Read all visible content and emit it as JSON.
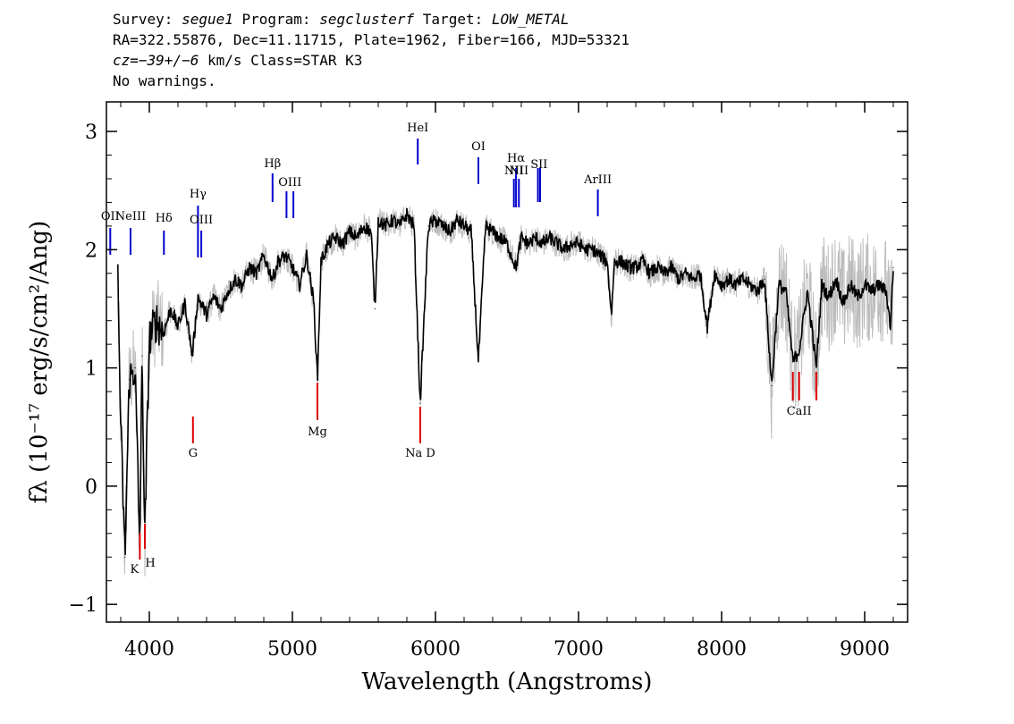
{
  "header": {
    "line1": {
      "survey_label": "Survey: ",
      "survey": "segue1",
      "program_label": " Program: ",
      "program": "segclusterf",
      "target_label": " Target: ",
      "target": "LOW_METAL"
    },
    "line2": "RA=322.55876, Dec=11.11715, Plate=1962, Fiber=166, MJD=53321",
    "line3": {
      "cz_label": "cz",
      "cz_value": "=−39+/−6",
      "rest": " km/s Class=STAR K3"
    },
    "line4": "No warnings."
  },
  "chart_data": {
    "type": "line",
    "xlabel": "Wavelength (Angstroms)",
    "ylabel": "fλ (10⁻¹⁷ erg/s/cm²/Ang)",
    "xlim": [
      3700,
      9300
    ],
    "ylim": [
      -1.15,
      3.25
    ],
    "xticks": [
      4000,
      5000,
      6000,
      7000,
      8000,
      9000
    ],
    "yticks": [
      -1,
      0,
      1,
      2,
      3
    ],
    "series": [
      {
        "color": "#000000",
        "x": [
          3780,
          3800,
          3830,
          3860,
          3900,
          3933,
          3950,
          3968,
          4000,
          4050,
          4100,
          4150,
          4200,
          4250,
          4300,
          4340,
          4400,
          4450,
          4500,
          4550,
          4600,
          4650,
          4700,
          4750,
          4800,
          4861,
          4900,
          4950,
          5000,
          5050,
          5100,
          5150,
          5175,
          5200,
          5250,
          5300,
          5350,
          5400,
          5450,
          5500,
          5550,
          5577,
          5600,
          5650,
          5700,
          5750,
          5800,
          5850,
          5893,
          5950,
          6000,
          6050,
          6100,
          6150,
          6200,
          6250,
          6300,
          6350,
          6400,
          6450,
          6500,
          6563,
          6600,
          6650,
          6700,
          6750,
          6800,
          6850,
          6900,
          6950,
          7000,
          7050,
          7100,
          7150,
          7200,
          7230,
          7250,
          7300,
          7350,
          7400,
          7450,
          7500,
          7550,
          7600,
          7650,
          7700,
          7750,
          7800,
          7850,
          7900,
          7950,
          8000,
          8050,
          8100,
          8150,
          8200,
          8250,
          8300,
          8350,
          8400,
          8450,
          8498,
          8542,
          8600,
          8662,
          8700,
          8750,
          8800,
          8850,
          8900,
          8950,
          9000,
          9050,
          9100,
          9150,
          9180,
          9200
        ],
        "y": [
          1.75,
          0.5,
          -0.6,
          0.9,
          1.0,
          -0.5,
          1.1,
          -0.45,
          1.25,
          1.4,
          1.3,
          1.5,
          1.35,
          1.55,
          1.1,
          1.6,
          1.45,
          1.6,
          1.5,
          1.65,
          1.75,
          1.7,
          1.85,
          1.8,
          1.95,
          1.75,
          1.9,
          1.95,
          1.85,
          1.7,
          1.95,
          1.55,
          0.9,
          1.9,
          2.05,
          2.1,
          2.05,
          2.15,
          2.1,
          2.2,
          2.15,
          1.5,
          2.25,
          2.2,
          2.25,
          2.2,
          2.3,
          2.2,
          0.7,
          2.2,
          2.25,
          2.2,
          2.15,
          2.25,
          2.2,
          2.15,
          1.05,
          2.2,
          2.15,
          2.1,
          2.05,
          1.85,
          2.1,
          2.05,
          2.1,
          2.05,
          2.1,
          2.05,
          2.0,
          2.05,
          2.05,
          2.0,
          2.0,
          1.95,
          1.9,
          1.45,
          1.9,
          1.9,
          1.85,
          1.85,
          1.9,
          1.8,
          1.85,
          1.8,
          1.85,
          1.75,
          1.8,
          1.75,
          1.8,
          1.35,
          1.8,
          1.7,
          1.75,
          1.7,
          1.75,
          1.7,
          1.65,
          1.75,
          0.85,
          1.7,
          1.65,
          1.05,
          1.15,
          1.65,
          1.0,
          1.7,
          1.6,
          1.75,
          1.55,
          1.7,
          1.6,
          1.7,
          1.65,
          1.7,
          1.65,
          1.35,
          1.85
        ]
      }
    ],
    "lines": [
      {
        "label": "OII",
        "wave": 3727,
        "kind": "emission"
      },
      {
        "label": "NeIII",
        "wave": 3869,
        "kind": "emission"
      },
      {
        "label": "Hδ",
        "wave": 4102,
        "kind": "emission"
      },
      {
        "label": "Hγ",
        "wave": 4340,
        "kind": "emission"
      },
      {
        "label": "OIII",
        "wave": 4363,
        "kind": "emission"
      },
      {
        "label": "Hβ",
        "wave": 4861,
        "kind": "emission"
      },
      {
        "label": "OIII",
        "wave": 4959,
        "kind": "emission"
      },
      {
        "label": "OIII",
        "wave": 5007,
        "kind": "emission"
      },
      {
        "label": "HeI",
        "wave": 5876,
        "kind": "emission"
      },
      {
        "label": "OI",
        "wave": 6300,
        "kind": "emission"
      },
      {
        "label": "NII",
        "wave": 6548,
        "kind": "emission"
      },
      {
        "label": "Hα",
        "wave": 6563,
        "kind": "emission"
      },
      {
        "label": "NII",
        "wave": 6583,
        "kind": "emission"
      },
      {
        "label": "SII",
        "wave": 6716,
        "kind": "emission"
      },
      {
        "label": "SII",
        "wave": 6731,
        "kind": "emission"
      },
      {
        "label": "ArIII",
        "wave": 7135,
        "kind": "emission"
      },
      {
        "label": "K",
        "wave": 3934,
        "kind": "absorption"
      },
      {
        "label": "H",
        "wave": 3969,
        "kind": "absorption"
      },
      {
        "label": "G",
        "wave": 4305,
        "kind": "absorption"
      },
      {
        "label": "Mg",
        "wave": 5175,
        "kind": "absorption"
      },
      {
        "label": "Na D",
        "wave": 5894,
        "kind": "absorption"
      },
      {
        "label": "CaII",
        "wave": 8498,
        "kind": "absorption"
      },
      {
        "label": "CaII",
        "wave": 8542,
        "kind": "absorption"
      },
      {
        "label": "CaII",
        "wave": 8662,
        "kind": "absorption"
      }
    ],
    "colors": {
      "flux": "#000000",
      "noise": "#bdbdbd",
      "emission": "#0000cc",
      "absorption": "#dd0000"
    }
  }
}
